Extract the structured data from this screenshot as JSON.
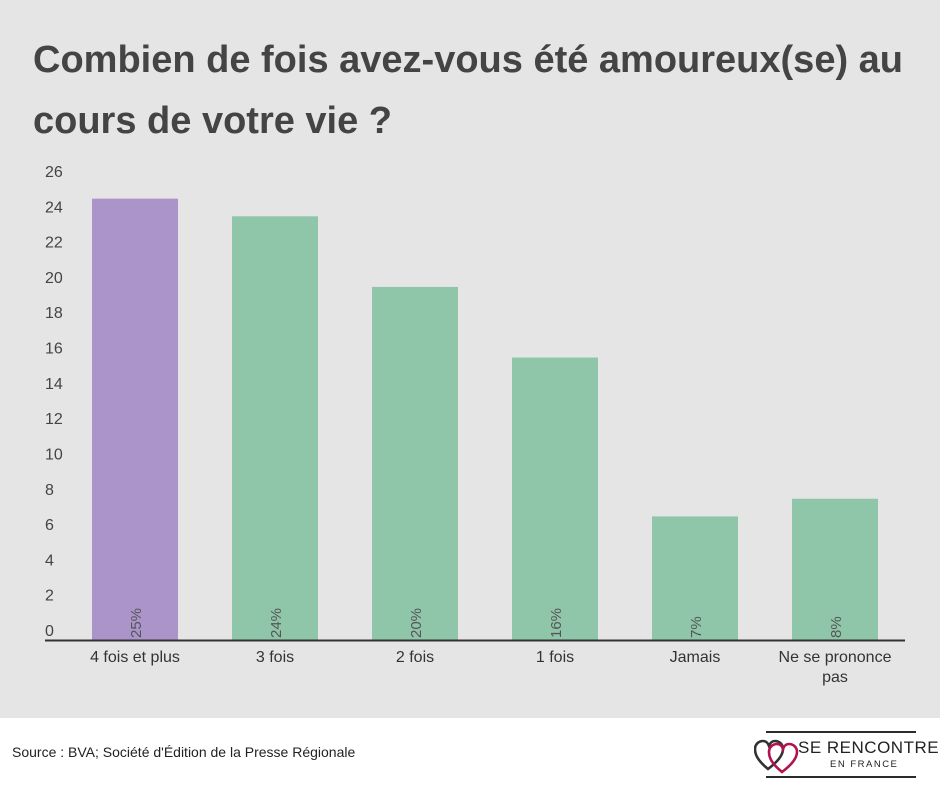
{
  "chart_data": {
    "type": "bar",
    "title": "Combien de fois avez-vous été amoureux(se) au cours de votre vie ?",
    "categories": [
      "4 fois et plus",
      "3 fois",
      "2 fois",
      "1 fois",
      "Jamais",
      "Ne se prononce pas"
    ],
    "values": [
      25,
      24,
      20,
      16,
      7,
      8
    ],
    "data_labels": [
      "25%",
      "24%",
      "20%",
      "16%",
      "7%",
      "8%"
    ],
    "highlight_index": 0,
    "yticks": [
      0,
      2,
      4,
      6,
      8,
      10,
      12,
      14,
      16,
      18,
      20,
      22,
      24,
      26
    ],
    "ylim": [
      0,
      26
    ],
    "xlabel": "",
    "ylabel": "",
    "grid": false,
    "colors": {
      "highlight": "#ab94c9",
      "default": "#8fc5a9"
    }
  },
  "footer": {
    "source": "Source : BVA; Société d'Édition de la Presse Régionale"
  },
  "logo": {
    "main": "SE RENCONTRER",
    "sub": "EN FRANCE",
    "heart_colors": [
      "#b2124f",
      "#333333"
    ]
  }
}
